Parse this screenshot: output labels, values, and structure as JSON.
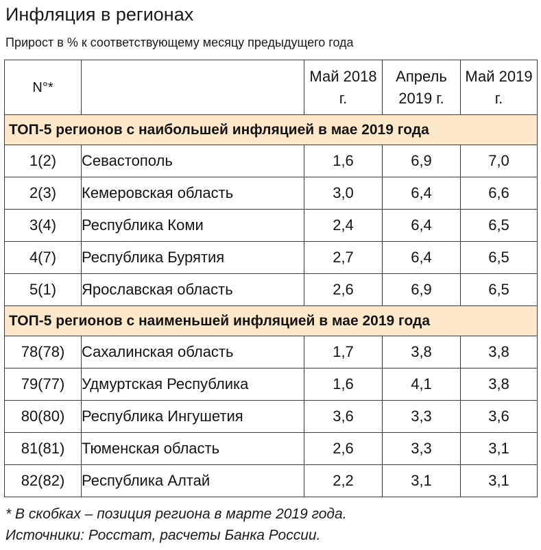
{
  "title": "Инфляция в регионах",
  "subtitle": "Прирост в % к соответствующему месяцу предыдущего года",
  "header": {
    "num": "N°*",
    "name": "",
    "col1": "Май 2018 г.",
    "col2": "Апрель 2019 г.",
    "col3": "Май 2019 г."
  },
  "sections": [
    {
      "title": "ТОП-5 регионов с наибольшей инфляцией в мае 2019 года",
      "rows": [
        {
          "num": "1(2)",
          "name": "Севастополь",
          "v1": "1,6",
          "v2": "6,9",
          "v3": "7,0"
        },
        {
          "num": "2(3)",
          "name": "Кемеровская область",
          "v1": "3,0",
          "v2": "6,4",
          "v3": "6,6"
        },
        {
          "num": "3(4)",
          "name": "Республика Коми",
          "v1": "2,4",
          "v2": "6,4",
          "v3": "6,5"
        },
        {
          "num": "4(7)",
          "name": "Республика Бурятия",
          "v1": "2,7",
          "v2": "6,4",
          "v3": "6,5"
        },
        {
          "num": "5(1)",
          "name": "Ярославская область",
          "v1": "2,6",
          "v2": "6,9",
          "v3": "6,5"
        }
      ]
    },
    {
      "title": "ТОП-5 регионов с наименьшей инфляцией в мае 2019 года",
      "rows": [
        {
          "num": "78(78)",
          "name": "Сахалинская область",
          "v1": "1,7",
          "v2": "3,8",
          "v3": "3,8"
        },
        {
          "num": "79(77)",
          "name": "Удмуртская Республика",
          "v1": "1,6",
          "v2": "4,1",
          "v3": "3,8"
        },
        {
          "num": "80(80)",
          "name": "Республика Ингушетия",
          "v1": "3,6",
          "v2": "3,3",
          "v3": "3,6"
        },
        {
          "num": "81(81)",
          "name": "Тюменская область",
          "v1": "2,6",
          "v2": "3,3",
          "v3": "3,1"
        },
        {
          "num": "82(82)",
          "name": "Республика Алтай",
          "v1": "2,2",
          "v2": "3,1",
          "v3": "3,1"
        }
      ]
    }
  ],
  "notes": {
    "footnote": "* В скобках – позиция региона в марте 2019 года.",
    "sources": "Источники: Росстат, расчеты Банка России."
  },
  "colors": {
    "section_bg": "#fde9c9",
    "border": "#3a3a3a"
  }
}
